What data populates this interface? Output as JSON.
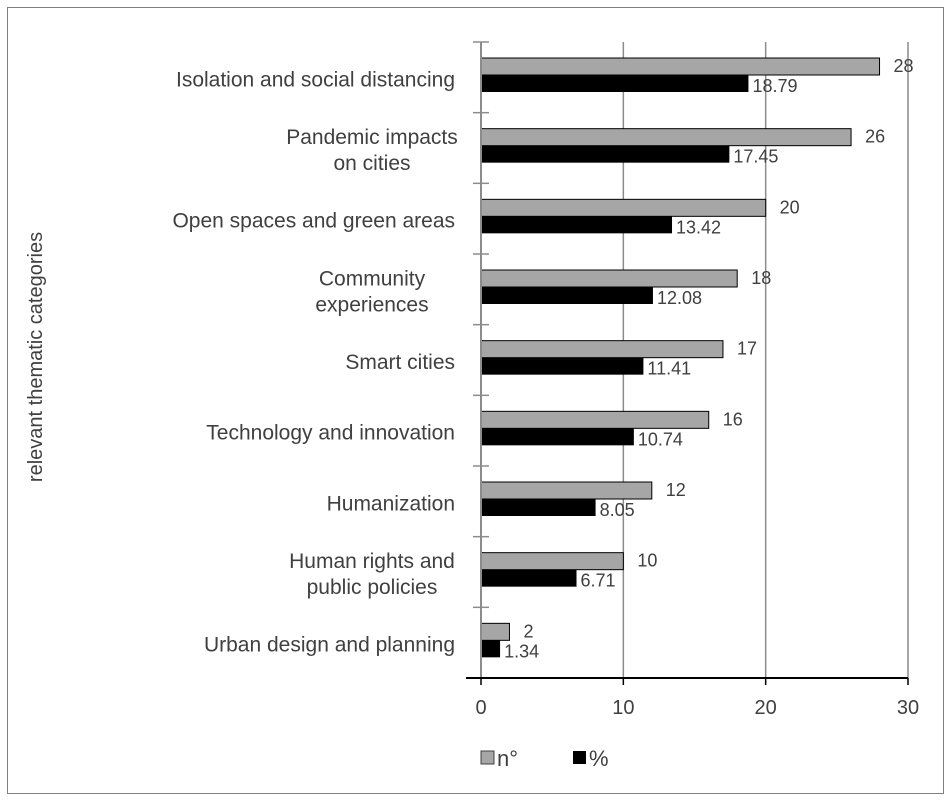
{
  "chart_data": {
    "type": "bar",
    "orientation": "horizontal",
    "title": "",
    "ylabel": "relevant thematic categories",
    "xlabel": "",
    "xlim": [
      0,
      30
    ],
    "xticks": [
      "0",
      "10",
      "20",
      "30"
    ],
    "xtick_values": [
      0,
      10,
      20,
      30
    ],
    "grid": "vertical",
    "legend_position": "bottom",
    "categories": [
      [
        "Isolation and social distancing"
      ],
      [
        "Pandemic impacts",
        "on cities"
      ],
      [
        "Open spaces and green areas"
      ],
      [
        "Community",
        "experiences"
      ],
      [
        "Smart cities"
      ],
      [
        "Technology and innovation"
      ],
      [
        "Humanization"
      ],
      [
        "Human rights and",
        "public policies"
      ],
      [
        "Urban design and planning"
      ]
    ],
    "series": [
      {
        "name": "n°",
        "color": "#a6a6a6",
        "values": [
          28,
          26,
          20,
          18,
          17,
          16,
          12,
          10,
          2
        ],
        "labels": [
          "28",
          "26",
          "20",
          "18",
          "17",
          "16",
          "12",
          "10",
          "2"
        ]
      },
      {
        "name": "%",
        "color": "#000000",
        "values": [
          18.79,
          17.45,
          13.42,
          12.08,
          11.41,
          10.74,
          8.05,
          6.71,
          1.34
        ],
        "labels": [
          "18.79",
          "17.45",
          "13.42",
          "12.08",
          "11.41",
          "10.74",
          "8.05",
          "6.71",
          "1.34"
        ]
      }
    ]
  }
}
